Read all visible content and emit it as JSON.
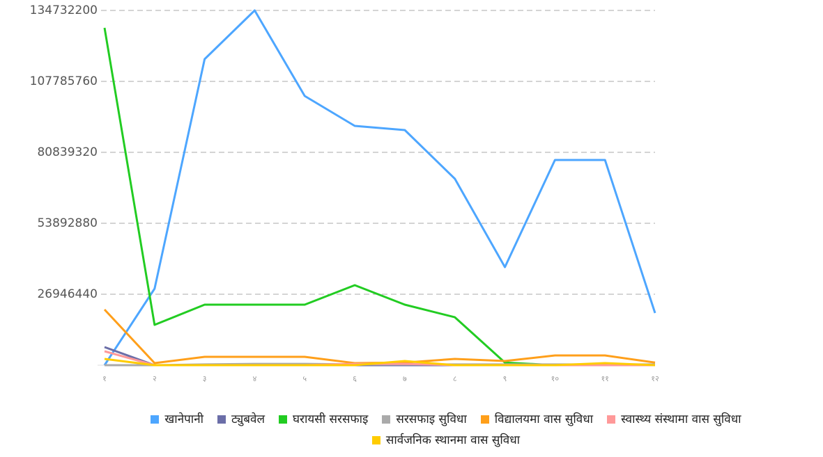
{
  "chart_data": {
    "type": "line",
    "categories": [
      "१",
      "२",
      "३",
      "४",
      "५",
      "६",
      "७",
      "८",
      "९",
      "१०",
      "११",
      "१२"
    ],
    "ylim": [
      0,
      134732200
    ],
    "yticks": [
      26946440,
      53892880,
      80839320,
      107785760,
      134732200
    ],
    "grid": true,
    "legend": "bottom",
    "series": [
      {
        "name": "खानेपानी",
        "color": "#4da6ff",
        "values": [
          0,
          29060000,
          116240000,
          134732200,
          102238000,
          90878000,
          89293000,
          70800000,
          37250000,
          77933000,
          77933000,
          19814000
        ]
      },
      {
        "name": "ट्युबवेल",
        "color": "#6b6ea8",
        "values": [
          6870000,
          0,
          0,
          0,
          0,
          0,
          0,
          0,
          0,
          0,
          0,
          0
        ]
      },
      {
        "name": "घरायसी सरसफाइ",
        "color": "#22cc22",
        "values": [
          128128000,
          15322000,
          22984000,
          22984000,
          22984000,
          30381000,
          22984000,
          18200000,
          1000000,
          0,
          0,
          0
        ]
      },
      {
        "name": "सरसफाइ सुविधा",
        "color": "#aaaaaa",
        "values": [
          0,
          0,
          300000,
          500000,
          500000,
          300000,
          300000,
          300000,
          300000,
          300000,
          300000,
          300000
        ]
      },
      {
        "name": "विद्यालयमा वास सुविधा",
        "color": "#ff9f1a",
        "values": [
          21134000,
          800000,
          3170000,
          3170000,
          3170000,
          800000,
          1000000,
          2378000,
          1585000,
          3700000,
          3700000,
          1000000
        ]
      },
      {
        "name": "स्वास्थ्य संस्थामा वास सुविधा",
        "color": "#ff9999",
        "values": [
          5284000,
          0,
          0,
          0,
          0,
          500000,
          500000,
          0,
          0,
          0,
          0,
          0
        ]
      },
      {
        "name": "सार्वजनिक स्थानमा वास सुविधा",
        "color": "#ffcc00",
        "values": [
          2378000,
          0,
          0,
          0,
          0,
          0,
          1585000,
          0,
          0,
          0,
          800000,
          0
        ]
      }
    ]
  }
}
